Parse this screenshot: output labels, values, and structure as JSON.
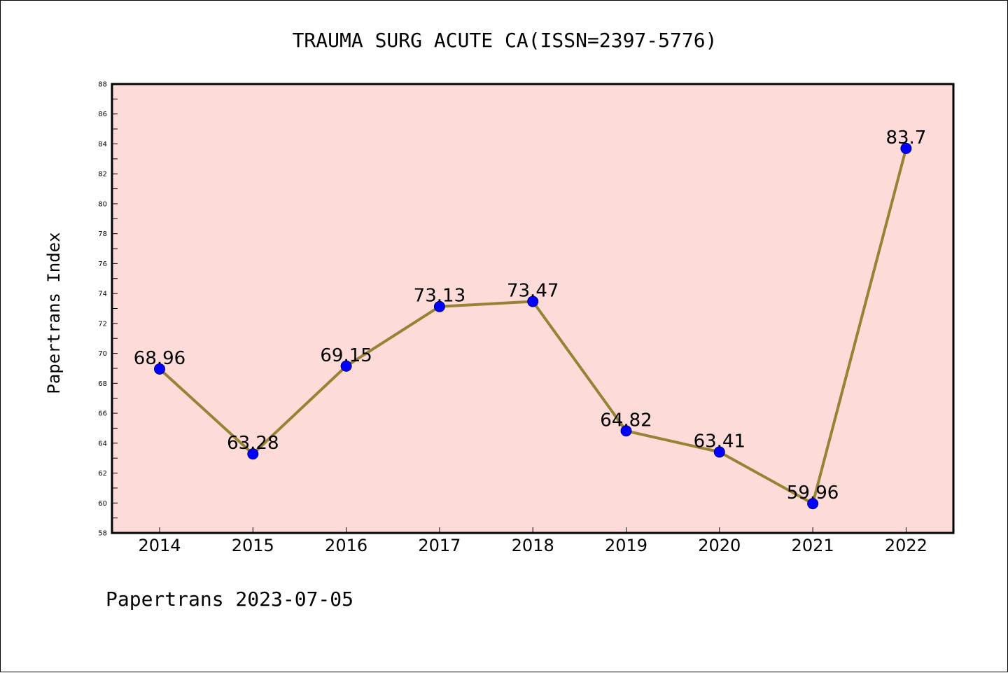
{
  "chart_data": {
    "type": "line",
    "title": "TRAUMA SURG ACUTE CA(ISSN=2397-5776)",
    "ylabel": "Papertrans Index",
    "xlabel": "",
    "categories": [
      "2014",
      "2015",
      "2016",
      "2017",
      "2018",
      "2019",
      "2020",
      "2021",
      "2022"
    ],
    "series": [
      {
        "name": "Papertrans Index",
        "values": [
          68.96,
          63.28,
          69.15,
          73.13,
          73.47,
          64.82,
          63.41,
          59.96,
          83.7
        ],
        "labels": [
          "68.96",
          "63.28",
          "69.15",
          "73.13",
          "73.47",
          "64.82",
          "63.41",
          "59.96",
          "83.7"
        ]
      }
    ],
    "ylim": [
      58,
      88
    ],
    "yticks": [
      "58",
      "60",
      "62",
      "64",
      "66",
      "68",
      "70",
      "72",
      "74",
      "76",
      "78",
      "80",
      "82",
      "84",
      "86",
      "88"
    ],
    "grid": false,
    "legend": "none",
    "colors": {
      "plot_background": "#fddbd9",
      "line": "#978336",
      "marker": "#0000ff",
      "marker_edge": "#000080",
      "axis": "#000000"
    }
  },
  "footer": {
    "text": "Papertrans 2023-07-05"
  }
}
